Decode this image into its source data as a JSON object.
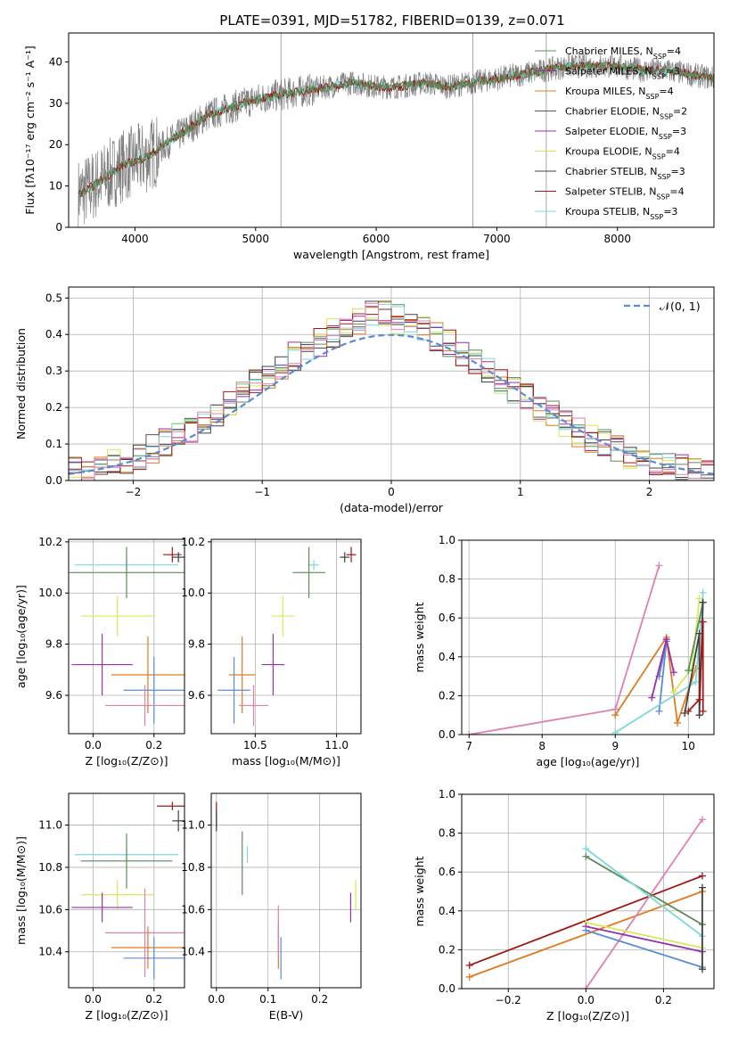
{
  "title": "PLATE=0391, MJD=51782, FIBERID=0139, z=0.071",
  "colors": {
    "chabrier_miles": "#5b8c5a",
    "salpeter_miles": "#9b30a8",
    "kroupa_miles": "#e07b22",
    "chabrier_elodie": "#555555",
    "salpeter_elodie": "#9b30a8",
    "kroupa_elodie": "#d8e85a",
    "chabrier_stelib": "#404040",
    "salpeter_stelib": "#a01818",
    "kroupa_stelib": "#7fd8d8",
    "blue": "#5b8bd6",
    "pink": "#e080b0",
    "data_gray": "#808080"
  },
  "chart_data": [
    {
      "id": "spectrum",
      "type": "line",
      "xlabel": "wavelength [Angstrom, rest frame]",
      "ylabel": "Flux [fλ10⁻¹⁷ erg cm⁻² s⁻¹ A⁻¹]",
      "xlim": [
        3450,
        8800
      ],
      "ylim": [
        0,
        47
      ],
      "xticks": [
        "4000",
        "5000",
        "6000",
        "7000",
        "8000"
      ],
      "yticks": [
        "0",
        "10",
        "20",
        "30",
        "40"
      ],
      "legend_position": "top-right",
      "legend": [
        "Chabrier MILES, N_SSP=4",
        "Salpeter MILES, N_SSP=3",
        "Kroupa MILES, N_SSP=4",
        "Chabrier ELODIE, N_SSP=2",
        "Salpeter ELODIE, N_SSP=3",
        "Kroupa ELODIE, N_SSP=4",
        "Chabrier STELIB, N_SSP=3",
        "Salpeter STELIB, N_SSP=4",
        "Kroupa STELIB, N_SSP=3"
      ],
      "model_curve": {
        "x": [
          3530,
          3600,
          3700,
          3800,
          3900,
          4000,
          4100,
          4200,
          4300,
          4400,
          4500,
          4600,
          4700,
          4800,
          4900,
          5000,
          5200,
          5400,
          5600,
          5800,
          6000,
          6200,
          6400,
          6600,
          6800,
          7000,
          7200,
          7400,
          7600,
          7800,
          8000,
          8200,
          8400,
          8600,
          8800
        ],
        "y": [
          8,
          9,
          11,
          13,
          15,
          16,
          17,
          19,
          21,
          23,
          25,
          27,
          28,
          29,
          30,
          31,
          32,
          33,
          34,
          35,
          34,
          34,
          35,
          34,
          35,
          36,
          37,
          38,
          39,
          39,
          39,
          38,
          38,
          37,
          36
        ]
      }
    },
    {
      "id": "residuals",
      "type": "histogram",
      "xlabel": "(data-model)/error",
      "ylabel": "Normed distribution",
      "xlim": [
        -2.5,
        2.5
      ],
      "ylim": [
        0,
        0.53
      ],
      "xticks": [
        "−2",
        "−1",
        "0",
        "1",
        "2"
      ],
      "yticks": [
        "0.0",
        "0.1",
        "0.2",
        "0.3",
        "0.4",
        "0.5"
      ],
      "legend_position": "top-right",
      "legend": [
        "𝒩(0, 1)"
      ],
      "bin_edges_start": -2.5,
      "bin_width": 0.1,
      "bin_counts_envelope": [
        0.02,
        0.03,
        0.04,
        0.05,
        0.06,
        0.08,
        0.1,
        0.12,
        0.15,
        0.18,
        0.2,
        0.24,
        0.27,
        0.3,
        0.33,
        0.36,
        0.38,
        0.41,
        0.43,
        0.45,
        0.46,
        0.44,
        0.42,
        0.4,
        0.38,
        0.35,
        0.32,
        0.29,
        0.26,
        0.23,
        0.2,
        0.17,
        0.14,
        0.12,
        0.1,
        0.08,
        0.06,
        0.05,
        0.04,
        0.03,
        0.02
      ]
    },
    {
      "id": "age_vs_Z",
      "type": "scatter",
      "xlabel": "Z [log₁₀(Z/Z⊙)]",
      "ylabel": "age  [log₁₀(age/yr)]",
      "xlim": [
        -0.08,
        0.3
      ],
      "ylim": [
        9.45,
        10.21
      ],
      "xticks": [
        "0.0",
        "0.2"
      ],
      "yticks": [
        "9.6",
        "9.8",
        "10.0",
        "10.2"
      ],
      "points": [
        {
          "x": 0.11,
          "y": 10.11,
          "xerr": 0.17,
          "yerr": 0.02,
          "color": "kroupa_stelib"
        },
        {
          "x": 0.11,
          "y": 10.08,
          "xerr": 0.19,
          "yerr": 0.1,
          "color": "chabrier_miles"
        },
        {
          "x": 0.26,
          "y": 10.15,
          "xerr": 0.03,
          "yerr": 0.03,
          "color": "salpeter_stelib"
        },
        {
          "x": 0.28,
          "y": 10.14,
          "xerr": 0.02,
          "yerr": 0.02,
          "color": "chabrier_stelib"
        },
        {
          "x": 0.08,
          "y": 9.91,
          "xerr": 0.12,
          "yerr": 0.08,
          "color": "kroupa_elodie"
        },
        {
          "x": 0.03,
          "y": 9.72,
          "xerr": 0.1,
          "yerr": 0.12,
          "color": "salpeter_miles"
        },
        {
          "x": 0.18,
          "y": 9.68,
          "xerr": 0.12,
          "yerr": 0.15,
          "color": "kroupa_miles"
        },
        {
          "x": 0.2,
          "y": 9.62,
          "xerr": 0.1,
          "yerr": 0.13,
          "color": "blue"
        },
        {
          "x": 0.17,
          "y": 9.56,
          "xerr": 0.13,
          "yerr": 0.08,
          "color": "pink"
        }
      ]
    },
    {
      "id": "age_vs_mass",
      "type": "scatter",
      "xlabel": "mass [log₁₀(M/M⊙)]",
      "ylabel": "",
      "xlim": [
        10.23,
        11.15
      ],
      "ylim": [
        9.45,
        10.21
      ],
      "xticks": [
        "10.5",
        "11.0"
      ],
      "yticks": [
        "9.6",
        "9.8",
        "10.0",
        "10.2"
      ],
      "points": [
        {
          "x": 10.86,
          "y": 10.11,
          "xerr": 0.03,
          "yerr": 0.02,
          "color": "kroupa_stelib"
        },
        {
          "x": 10.83,
          "y": 10.08,
          "xerr": 0.1,
          "yerr": 0.1,
          "color": "chabrier_miles"
        },
        {
          "x": 11.09,
          "y": 10.15,
          "xerr": 0.03,
          "yerr": 0.03,
          "color": "salpeter_stelib"
        },
        {
          "x": 11.05,
          "y": 10.14,
          "xerr": 0.03,
          "yerr": 0.02,
          "color": "chabrier_stelib"
        },
        {
          "x": 10.67,
          "y": 9.91,
          "xerr": 0.07,
          "yerr": 0.08,
          "color": "kroupa_elodie"
        },
        {
          "x": 10.61,
          "y": 9.72,
          "xerr": 0.07,
          "yerr": 0.12,
          "color": "salpeter_miles"
        },
        {
          "x": 10.42,
          "y": 9.68,
          "xerr": 0.08,
          "yerr": 0.15,
          "color": "kroupa_miles"
        },
        {
          "x": 10.37,
          "y": 9.62,
          "xerr": 0.1,
          "yerr": 0.13,
          "color": "blue"
        },
        {
          "x": 10.49,
          "y": 9.56,
          "xerr": 0.09,
          "yerr": 0.08,
          "color": "pink"
        }
      ]
    },
    {
      "id": "weight_vs_age",
      "type": "line",
      "xlabel": "age  [log₁₀(age/yr)]",
      "ylabel": "mass weight",
      "xlim": [
        6.9,
        10.35
      ],
      "ylim": [
        0,
        1
      ],
      "xticks": [
        "7",
        "8",
        "9",
        "10"
      ],
      "yticks": [
        "0.0",
        "0.2",
        "0.4",
        "0.6",
        "0.8",
        "1.0"
      ],
      "series": [
        {
          "color": "pink",
          "x": [
            7.0,
            9.0,
            9.6
          ],
          "y": [
            0.0,
            0.13,
            0.87
          ]
        },
        {
          "color": "kroupa_miles",
          "x": [
            9.0,
            9.7,
            9.85,
            10.1
          ],
          "y": [
            0.1,
            0.5,
            0.06,
            0.34
          ]
        },
        {
          "color": "blue",
          "x": [
            9.6,
            9.7,
            9.6
          ],
          "y": [
            0.12,
            0.48,
            0.3
          ]
        },
        {
          "color": "salpeter_miles",
          "x": [
            9.5,
            9.7,
            9.8
          ],
          "y": [
            0.19,
            0.49,
            0.32
          ]
        },
        {
          "color": "kroupa_elodie",
          "x": [
            9.8,
            10.05,
            10.15
          ],
          "y": [
            0.22,
            0.34,
            0.7
          ]
        },
        {
          "color": "kroupa_stelib",
          "x": [
            9.0,
            10.1,
            10.2
          ],
          "y": [
            0.01,
            0.27,
            0.73
          ]
        },
        {
          "color": "chabrier_miles",
          "x": [
            10.0,
            10.2
          ],
          "y": [
            0.33,
            0.68
          ]
        },
        {
          "color": "chabrier_stelib",
          "x": [
            9.95,
            10.15,
            10.15,
            10.2
          ],
          "y": [
            0.11,
            0.52,
            0.1,
            0.68
          ]
        },
        {
          "color": "salpeter_stelib",
          "x": [
            10.0,
            10.15,
            10.2,
            10.2
          ],
          "y": [
            0.12,
            0.18,
            0.58,
            0.12
          ]
        }
      ]
    },
    {
      "id": "mass_vs_Z",
      "type": "scatter",
      "xlabel": "Z [log₁₀(Z/Z⊙)]",
      "ylabel": "mass [log₁₀(M/M⊙)]",
      "xlim": [
        -0.08,
        0.3
      ],
      "ylim": [
        10.23,
        11.15
      ],
      "xticks": [
        "0.0",
        "0.2"
      ],
      "yticks": [
        "10.4",
        "10.6",
        "10.8",
        "11.0"
      ],
      "points": [
        {
          "x": 0.11,
          "y": 10.86,
          "xerr": 0.17,
          "yerr": 0.03,
          "color": "kroupa_stelib"
        },
        {
          "x": 0.11,
          "y": 10.83,
          "xerr": 0.15,
          "yerr": 0.13,
          "color": "chabrier_miles"
        },
        {
          "x": 0.26,
          "y": 11.09,
          "xerr": 0.05,
          "yerr": 0.02,
          "color": "salpeter_stelib"
        },
        {
          "x": 0.28,
          "y": 11.02,
          "xerr": 0.02,
          "yerr": 0.05,
          "color": "chabrier_stelib"
        },
        {
          "x": 0.08,
          "y": 10.67,
          "xerr": 0.12,
          "yerr": 0.07,
          "color": "kroupa_elodie"
        },
        {
          "x": 0.03,
          "y": 10.61,
          "xerr": 0.1,
          "yerr": 0.07,
          "color": "salpeter_miles"
        },
        {
          "x": 0.18,
          "y": 10.42,
          "xerr": 0.12,
          "yerr": 0.1,
          "color": "kroupa_miles"
        },
        {
          "x": 0.2,
          "y": 10.37,
          "xerr": 0.1,
          "yerr": 0.1,
          "color": "blue"
        },
        {
          "x": 0.17,
          "y": 10.49,
          "xerr": 0.13,
          "yerr": 0.21,
          "color": "pink"
        }
      ]
    },
    {
      "id": "mass_vs_ebv",
      "type": "scatter",
      "xlabel": "E(B-V)",
      "ylabel": "",
      "xlim": [
        -0.01,
        0.28
      ],
      "ylim": [
        10.23,
        11.15
      ],
      "xticks": [
        "0.0",
        "0.1",
        "0.2"
      ],
      "yticks": [
        "10.4",
        "10.6",
        "10.8",
        "11.0"
      ],
      "points": [
        {
          "x": 0.0,
          "y": 11.05,
          "xerr": 0,
          "yerr": 0.06,
          "color": "salpeter_stelib"
        },
        {
          "x": 0.0,
          "y": 11.02,
          "xerr": 0,
          "yerr": 0.05,
          "color": "chabrier_stelib"
        },
        {
          "x": 0.05,
          "y": 10.82,
          "xerr": 0,
          "yerr": 0.15,
          "color": "chabrier_miles"
        },
        {
          "x": 0.06,
          "y": 10.86,
          "xerr": 0,
          "yerr": 0.04,
          "color": "kroupa_stelib"
        },
        {
          "x": 0.12,
          "y": 10.43,
          "xerr": 0,
          "yerr": 0.11,
          "color": "kroupa_miles"
        },
        {
          "x": 0.12,
          "y": 10.5,
          "xerr": 0,
          "yerr": 0.12,
          "color": "pink"
        },
        {
          "x": 0.125,
          "y": 10.37,
          "xerr": 0,
          "yerr": 0.1,
          "color": "blue"
        },
        {
          "x": 0.26,
          "y": 10.61,
          "xerr": 0,
          "yerr": 0.07,
          "color": "salpeter_miles"
        },
        {
          "x": 0.27,
          "y": 10.67,
          "xerr": 0,
          "yerr": 0.07,
          "color": "kroupa_elodie"
        }
      ]
    },
    {
      "id": "weight_vs_Z",
      "type": "line",
      "xlabel": "Z [log₁₀(Z/Z⊙)]",
      "ylabel": "mass weight",
      "xlim": [
        -0.32,
        0.33
      ],
      "ylim": [
        0,
        1
      ],
      "xticks": [
        "−0.2",
        "0.0",
        "0.2"
      ],
      "yticks": [
        "0.0",
        "0.2",
        "0.4",
        "0.6",
        "0.8",
        "1.0"
      ],
      "series": [
        {
          "color": "salpeter_stelib",
          "x": [
            -0.3,
            0.3
          ],
          "y": [
            0.12,
            0.58
          ]
        },
        {
          "color": "kroupa_miles",
          "x": [
            -0.3,
            0.3
          ],
          "y": [
            0.06,
            0.5
          ]
        },
        {
          "color": "pink",
          "x": [
            0.0,
            0.3
          ],
          "y": [
            0.0,
            0.87
          ]
        },
        {
          "color": "chabrier_miles",
          "x": [
            0.0,
            0.3
          ],
          "y": [
            0.68,
            0.33
          ]
        },
        {
          "color": "kroupa_stelib",
          "x": [
            0.0,
            0.3
          ],
          "y": [
            0.72,
            0.27
          ]
        },
        {
          "color": "kroupa_elodie",
          "x": [
            0.0,
            0.3
          ],
          "y": [
            0.34,
            0.21
          ]
        },
        {
          "color": "salpeter_miles",
          "x": [
            0.0,
            0.3
          ],
          "y": [
            0.32,
            0.19
          ]
        },
        {
          "color": "blue",
          "x": [
            0.0,
            0.3
          ],
          "y": [
            0.3,
            0.11
          ]
        },
        {
          "color": "chabrier_stelib",
          "x": [
            0.3,
            0.3
          ],
          "y": [
            0.52,
            0.1
          ]
        }
      ]
    }
  ]
}
